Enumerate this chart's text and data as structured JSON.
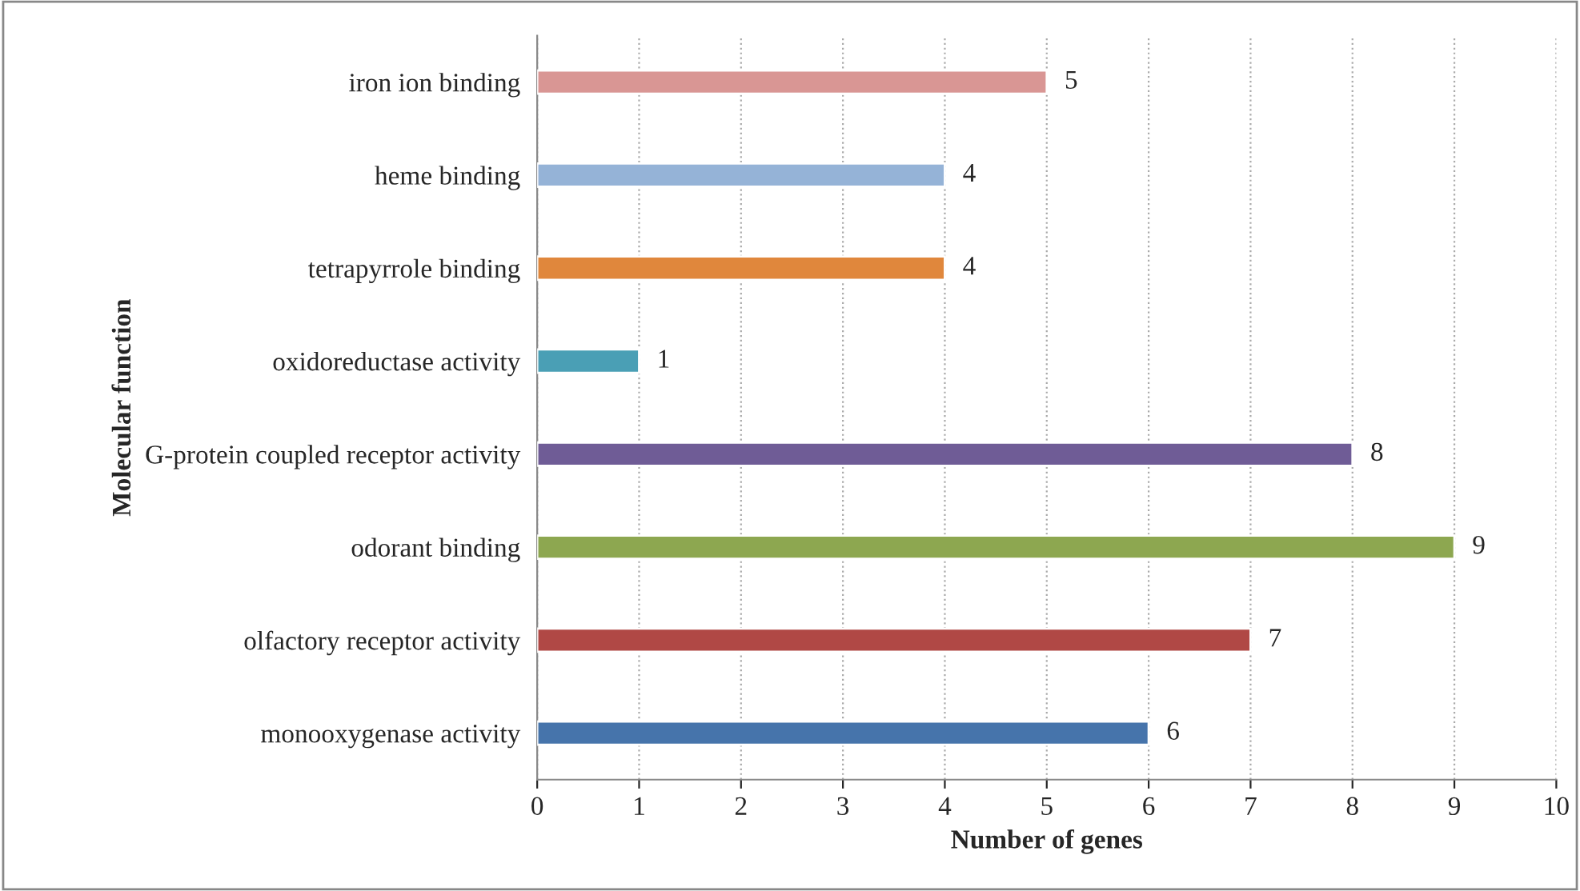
{
  "chart_data": {
    "type": "bar",
    "orientation": "horizontal",
    "xlabel": "Number of genes",
    "ylabel": "Molecular function",
    "categories": [
      "iron ion binding",
      "heme binding",
      "tetrapyrrole binding",
      "oxidoreductase activity",
      "G-protein coupled receptor activity",
      "odorant binding",
      "olfactory receptor activity",
      "monooxygenase activity"
    ],
    "values": [
      5,
      4,
      4,
      1,
      8,
      9,
      7,
      6
    ],
    "colors": [
      "#d99694",
      "#95b3d7",
      "#e0873c",
      "#4a9fb5",
      "#6f5c96",
      "#8da750",
      "#b04845",
      "#4674ab"
    ],
    "xlim": [
      0,
      10
    ],
    "xticks": [
      0,
      1,
      2,
      3,
      4,
      5,
      6,
      7,
      8,
      9,
      10
    ],
    "grid": "x",
    "data_labels": true
  }
}
